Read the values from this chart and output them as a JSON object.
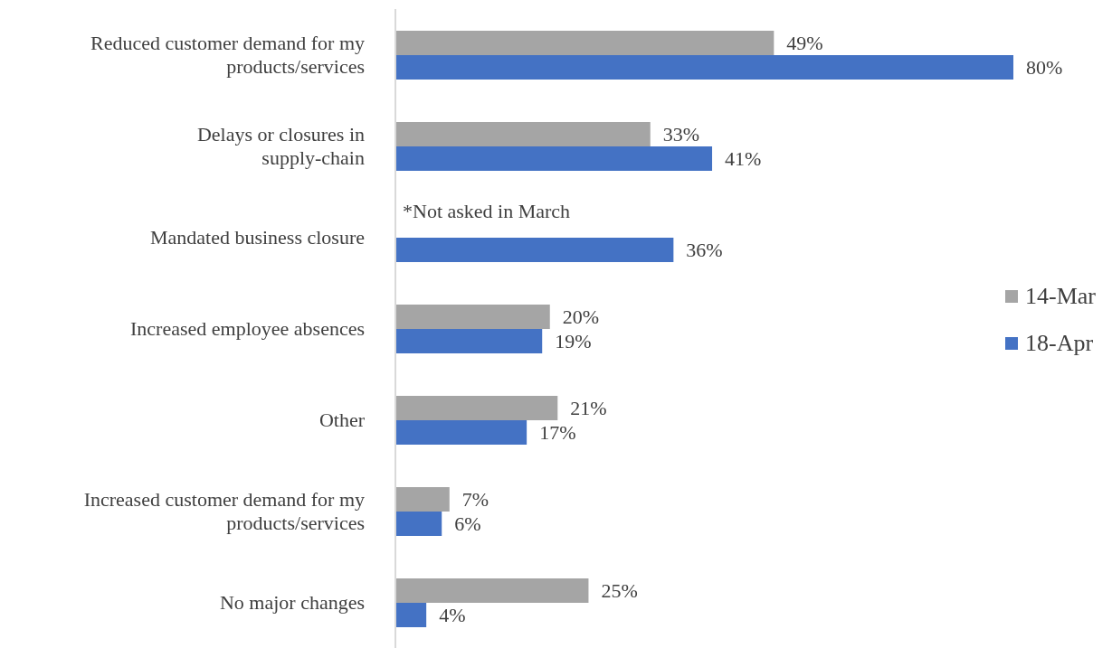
{
  "chart_data": {
    "type": "bar",
    "orientation": "horizontal",
    "categories": [
      "Reduced customer demand for my products/services",
      "Delays or closures in supply-chain",
      "Mandated business closure",
      "Increased employee absences",
      "Other",
      "Increased customer demand for my products/services",
      "No major changes"
    ],
    "series": [
      {
        "name": "14-Mar",
        "color": "#a5a5a5",
        "values": [
          49,
          33,
          null,
          20,
          21,
          7,
          25
        ],
        "value_labels": [
          "49%",
          "33%",
          null,
          "20%",
          "21%",
          "7%",
          "25%"
        ]
      },
      {
        "name": "18-Apr",
        "color": "#4472c4",
        "values": [
          80,
          41,
          36,
          19,
          17,
          6,
          4
        ],
        "value_labels": [
          "80%",
          "41%",
          "36%",
          "19%",
          "17%",
          "6%",
          "4%"
        ]
      }
    ],
    "annotations": [
      {
        "text": "*Not asked in March",
        "y": "Mandated business closure"
      }
    ],
    "legend": "right"
  }
}
